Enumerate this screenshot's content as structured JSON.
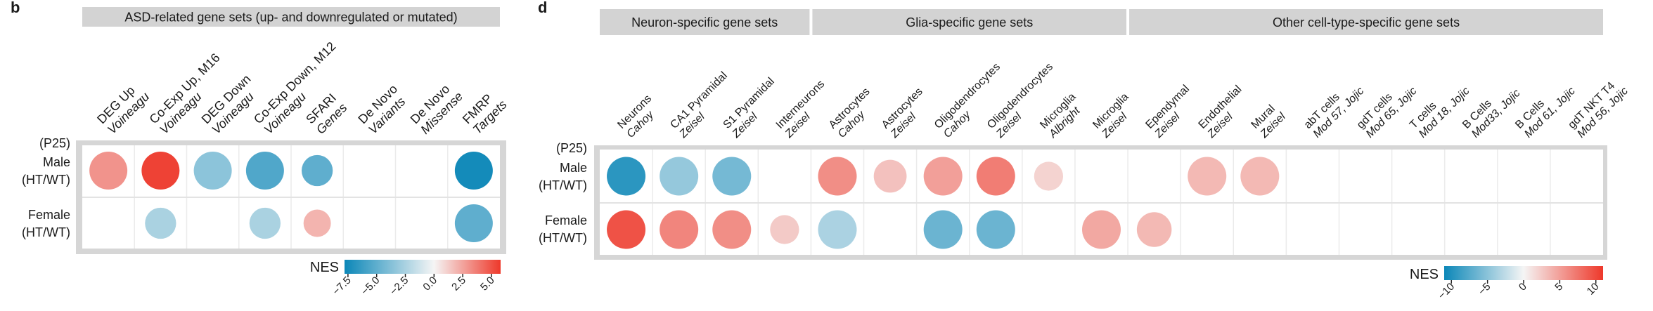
{
  "panels": [
    {
      "label": "b",
      "headers": [
        "ASD-related gene sets (up- and downregulated or mutated)"
      ],
      "header_spans": [
        8
      ],
      "group_label": "(P25)",
      "legend_title": "NES",
      "color_limits": [
        -7.8,
        5.8
      ],
      "ticks": [
        "−7.5",
        "−5.0",
        "−2.5",
        "0.0",
        "2.5",
        "5.0"
      ],
      "tick_values": [
        -7.5,
        -5.0,
        -2.5,
        0.0,
        2.5,
        5.0
      ]
    },
    {
      "label": "d",
      "headers": [
        "Neuron-specific gene sets",
        "Glia-specific gene sets",
        "Other cell-type-specific gene sets"
      ],
      "header_spans": [
        4,
        6,
        9
      ],
      "group_label": "(P25)",
      "legend_title": "NES",
      "color_limits": [
        -11,
        11
      ],
      "ticks": [
        "−10",
        "−5",
        "0",
        "5",
        "10"
      ],
      "tick_values": [
        -10,
        -5,
        0,
        5,
        10
      ]
    }
  ],
  "chart_data": [
    {
      "type": "scatter",
      "title": "ASD-related gene sets (up- and downregulated or mutated)",
      "color_legend": "NES",
      "rows": [
        {
          "line1": "Male",
          "line2": "(HT/WT)"
        },
        {
          "line1": "Female",
          "line2": "(HT/WT)"
        }
      ],
      "columns": [
        {
          "line1": "DEG Up",
          "line2": "Voineagu"
        },
        {
          "line1": "Co-Exp Up, M16",
          "line2": "Voineagu"
        },
        {
          "line1": "DEG Down",
          "line2": "Voineagu"
        },
        {
          "line1": "Co-Exp Down, M12",
          "line2": "Voineagu"
        },
        {
          "line1": "SFARI",
          "line2": "Genes"
        },
        {
          "line1": "De Novo",
          "line2": "Variants"
        },
        {
          "line1": "De Novo",
          "line2": "Missense"
        },
        {
          "line1": "FMRP",
          "line2": "Targets"
        }
      ],
      "nes": [
        [
          3.0,
          5.5,
          -3.5,
          -5.5,
          -5.0,
          null,
          null,
          -7.5
        ],
        [
          null,
          -2.5,
          null,
          -2.5,
          2.0,
          null,
          null,
          -5.0
        ]
      ],
      "size": [
        [
          1.0,
          1.0,
          1.0,
          1.0,
          0.82,
          null,
          null,
          1.0
        ],
        [
          null,
          0.82,
          null,
          0.82,
          0.72,
          null,
          null,
          1.0
        ]
      ]
    },
    {
      "type": "scatter",
      "title": "Cell-type-specific gene sets",
      "color_legend": "NES",
      "rows": [
        {
          "line1": "Male",
          "line2": "(HT/WT)"
        },
        {
          "line1": "Female",
          "line2": "(HT/WT)"
        }
      ],
      "columns": [
        {
          "line1": "Neurons",
          "line2": "Cahoy"
        },
        {
          "line1": "CA1 Pyramidal",
          "line2": "Zeisel"
        },
        {
          "line1": "S1 Pyramidal",
          "line2": "Zeisel"
        },
        {
          "line1": "Interneurons",
          "line2": "Zeisel"
        },
        {
          "line1": "Astrocytes",
          "line2": "Cahoy"
        },
        {
          "line1": "Astrocytes",
          "line2": "Zeisel"
        },
        {
          "line1": "Oligodendrocytes",
          "line2": "Cahoy"
        },
        {
          "line1": "Oligodendrocytes",
          "line2": "Zeisel"
        },
        {
          "line1": "Microglia",
          "line2": "Albright"
        },
        {
          "line1": "Microglia",
          "line2": "Zeisel"
        },
        {
          "line1": "Ependymal",
          "line2": "Zeisel"
        },
        {
          "line1": "Endothelial",
          "line2": "Zeisel"
        },
        {
          "line1": "Mural",
          "line2": "Zeisel"
        },
        {
          "line1": "abT cells",
          "line2": "Mod 57, Jojic"
        },
        {
          "line1": "gdT cells",
          "line2": "Mod 65, Jojic"
        },
        {
          "line1": "T cells",
          "line2": "Mod 18, Jojic"
        },
        {
          "line1": "B Cells",
          "line2": "Mod33, Jojic"
        },
        {
          "line1": "B Cells",
          "line2": "Mod 61, Jojic"
        },
        {
          "line1": "gdT NKT T4",
          "line2": "Mod 56, Jojic"
        }
      ],
      "nes": [
        [
          -9.5,
          -4.5,
          -6.0,
          null,
          6.0,
          3.0,
          5.0,
          7.0,
          2.0,
          null,
          null,
          3.5,
          3.5,
          null,
          null,
          null,
          null,
          null,
          null
        ],
        [
          9.5,
          6.5,
          6.0,
          2.5,
          -3.5,
          null,
          -6.5,
          -6.5,
          null,
          4.5,
          3.5,
          null,
          null,
          null,
          null,
          null,
          null,
          null,
          null
        ]
      ],
      "size": [
        [
          1.0,
          1.0,
          1.0,
          null,
          1.0,
          0.85,
          1.0,
          1.0,
          0.75,
          null,
          null,
          1.0,
          1.0,
          null,
          null,
          null,
          null,
          null,
          null
        ],
        [
          1.0,
          1.0,
          1.0,
          0.75,
          1.0,
          null,
          1.0,
          1.0,
          null,
          1.0,
          0.9,
          null,
          null,
          null,
          null,
          null,
          null,
          null,
          null
        ]
      ]
    }
  ]
}
